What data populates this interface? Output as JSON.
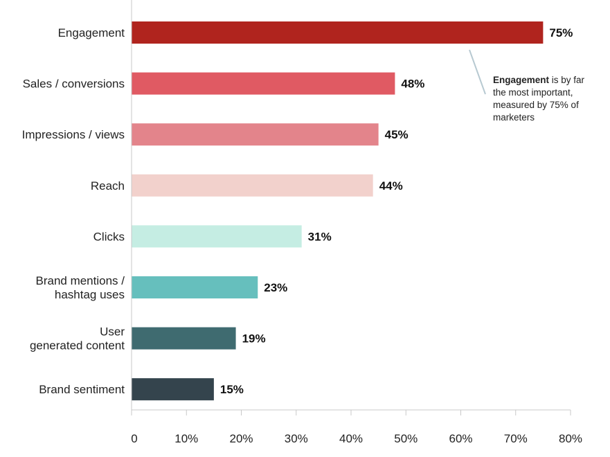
{
  "chart_data": {
    "type": "bar",
    "orientation": "horizontal",
    "categories": [
      "Engagement",
      "Sales / conversions",
      "Impressions / views",
      "Reach",
      "Clicks",
      "Brand mentions / hashtag uses",
      "User generated content",
      "Brand sentiment"
    ],
    "category_lines": [
      [
        "Engagement"
      ],
      [
        "Sales / conversions"
      ],
      [
        "Impressions / views"
      ],
      [
        "Reach"
      ],
      [
        "Clicks"
      ],
      [
        "Brand mentions /",
        "hashtag uses"
      ],
      [
        "User",
        "generated content"
      ],
      [
        "Brand sentiment"
      ]
    ],
    "values": [
      75,
      48,
      45,
      44,
      31,
      23,
      19,
      15
    ],
    "value_labels": [
      "75%",
      "48%",
      "45%",
      "44%",
      "31%",
      "23%",
      "19%",
      "15%"
    ],
    "colors": [
      "#b0241e",
      "#e05a63",
      "#e3848b",
      "#f2d1cc",
      "#c5ede3",
      "#66bfbd",
      "#3f6b70",
      "#34444d"
    ],
    "xlim": [
      0,
      80
    ],
    "xticks": [
      0,
      10,
      20,
      30,
      40,
      50,
      60,
      70,
      80
    ],
    "xtick_labels": [
      "0",
      "10%",
      "20%",
      "30%",
      "40%",
      "50%",
      "60%",
      "70%",
      "80%"
    ],
    "grid": false,
    "annotation": {
      "bold": "Engagement",
      "lines": [
        " is by far",
        "the most important,",
        "measured by 75% of",
        "marketers"
      ]
    }
  }
}
